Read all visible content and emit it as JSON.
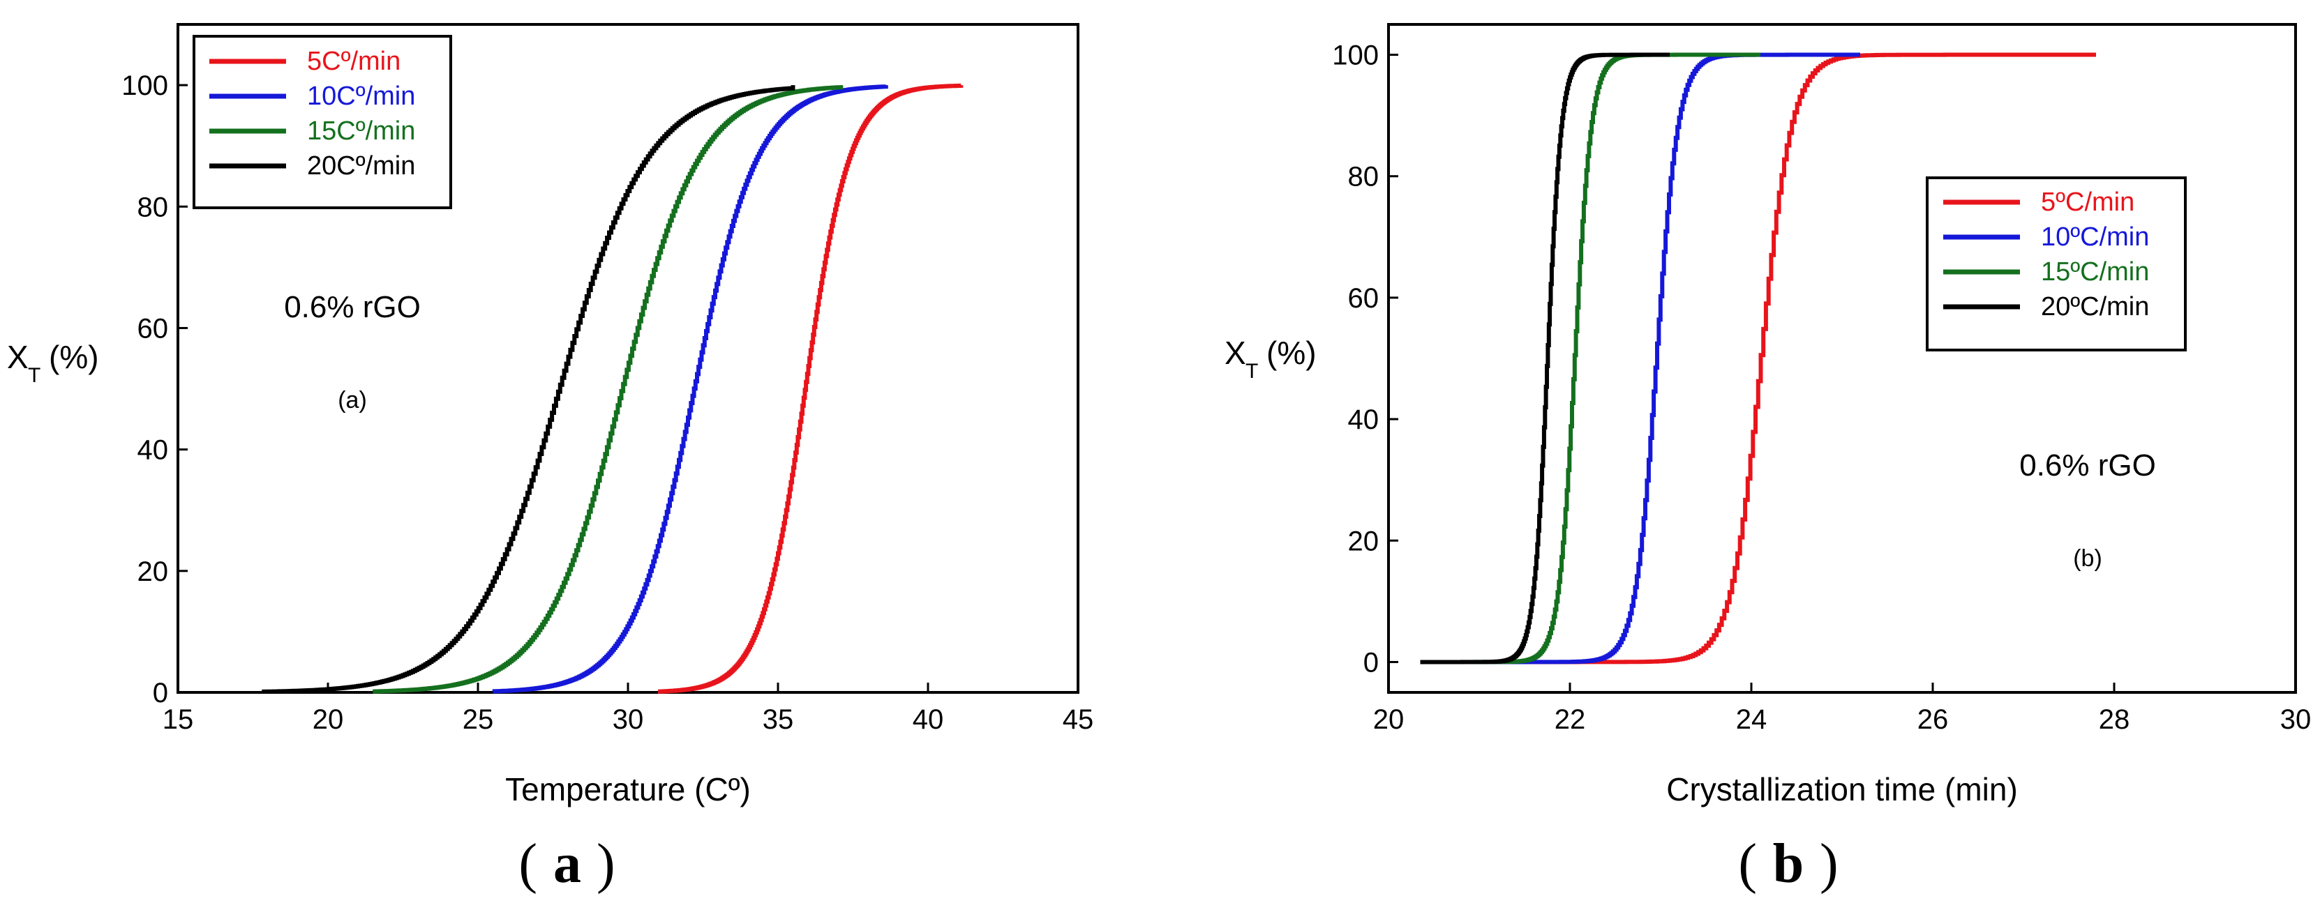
{
  "chart_data": [
    {
      "type": "line",
      "panel": "a",
      "caption": "(a)",
      "caption_letter": "a",
      "annotation_sample": "0.6% rGO",
      "annotation_panel": "(a)",
      "xlabel": "Temperature (Cº)",
      "ylabel_main": "X",
      "ylabel_sub": "T",
      "ylabel_unit": "(%)",
      "xlim": [
        15,
        45
      ],
      "ylim": [
        0,
        110
      ],
      "xticks": [
        15,
        20,
        25,
        30,
        35,
        40,
        45
      ],
      "yticks": [
        0,
        20,
        40,
        60,
        80,
        100
      ],
      "legend_position": "top-left",
      "series": [
        {
          "name": "5Cº/min",
          "color": "#e8141b",
          "x_start": 31.0,
          "x_end": 41.1,
          "x50": 35.9,
          "k": 1.35
        },
        {
          "name": "10Cº/min",
          "color": "#1518d8",
          "x_start": 25.5,
          "x_end": 38.6,
          "x50": 32.2,
          "k": 0.95
        },
        {
          "name": "15Cº/min",
          "color": "#14701e",
          "x_start": 21.5,
          "x_end": 37.1,
          "x50": 29.8,
          "k": 0.78
        },
        {
          "name": "20Cº/min",
          "color": "#000000",
          "x_start": 17.8,
          "x_end": 35.5,
          "x50": 27.7,
          "k": 0.68
        }
      ]
    },
    {
      "type": "line",
      "panel": "b",
      "caption": "(b)",
      "caption_letter": "b",
      "annotation_sample": "0.6% rGO",
      "annotation_panel": "(b)",
      "xlabel": "Crystallization time (min)",
      "ylabel_main": "X",
      "ylabel_sub": "T",
      "ylabel_unit": "(%)",
      "xlim": [
        20,
        30
      ],
      "ylim": [
        -5,
        105
      ],
      "xticks": [
        20,
        22,
        24,
        26,
        28,
        30
      ],
      "yticks": [
        0,
        20,
        40,
        60,
        80,
        100
      ],
      "legend_position": "center-right",
      "series": [
        {
          "name": "5ºC/min",
          "color": "#e8141b",
          "x_start": 20.35,
          "x_end": 27.8,
          "x50": 24.1,
          "k": 6.0
        },
        {
          "name": "10ºC/min",
          "color": "#1518d8",
          "x_start": 20.35,
          "x_end": 25.2,
          "x50": 22.95,
          "k": 8.5
        },
        {
          "name": "15ºC/min",
          "color": "#14701e",
          "x_start": 20.35,
          "x_end": 24.1,
          "x50": 22.05,
          "k": 11.0
        },
        {
          "name": "20ºC/min",
          "color": "#000000",
          "x_start": 20.35,
          "x_end": 23.1,
          "x50": 21.75,
          "k": 13.0
        }
      ]
    }
  ]
}
